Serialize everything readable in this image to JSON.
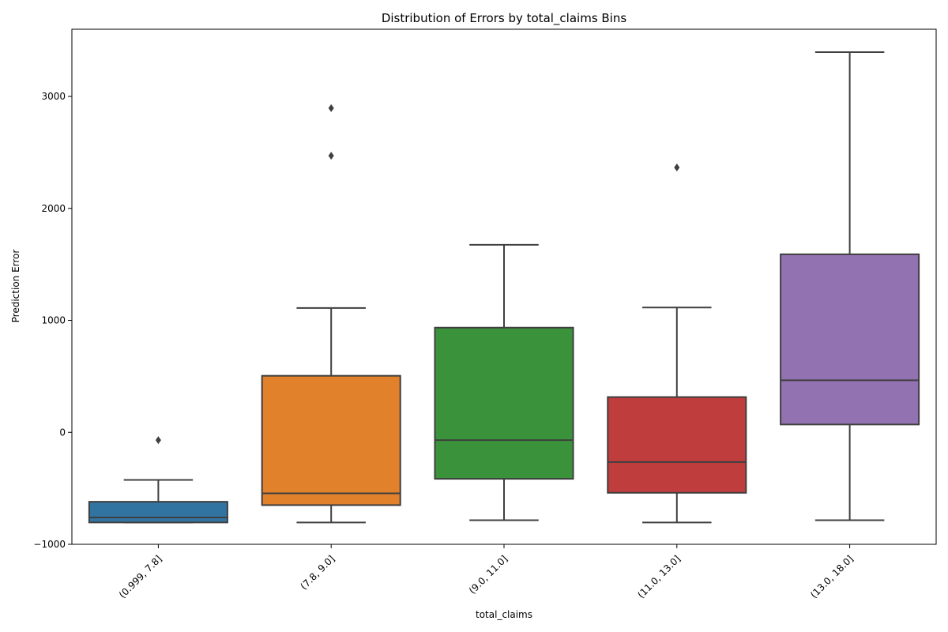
{
  "chart_data": {
    "type": "box",
    "title": "Distribution of Errors by total_claims Bins",
    "xlabel": "total_claims",
    "ylabel": "Prediction Error",
    "ylim": [
      -1000,
      3600
    ],
    "yticks": [
      -1000,
      0,
      1000,
      2000,
      3000
    ],
    "ytick_labels": [
      "−1000",
      "0",
      "1000",
      "2000",
      "3000"
    ],
    "grid": false,
    "categories": [
      "(0.999, 7.8]",
      "(7.8, 9.0]",
      "(9.0, 11.0]",
      "(11.0, 13.0]",
      "(13.0, 18.0]"
    ],
    "boxes": [
      {
        "category": "(0.999, 7.8]",
        "whisker_low": -805,
        "q1": -805,
        "median": -760,
        "q3": -620,
        "whisker_high": -425,
        "fliers": [
          -70
        ],
        "color": "#3274a1"
      },
      {
        "category": "(7.8, 9.0]",
        "whisker_low": -805,
        "q1": -650,
        "median": -545,
        "q3": 505,
        "whisker_high": 1110,
        "fliers": [
          2470,
          2895
        ],
        "color": "#e1812c"
      },
      {
        "category": "(9.0, 11.0]",
        "whisker_low": -785,
        "q1": -415,
        "median": -70,
        "q3": 935,
        "whisker_high": 1675,
        "fliers": [],
        "color": "#3a923a"
      },
      {
        "category": "(11.0, 13.0]",
        "whisker_low": -805,
        "q1": -540,
        "median": -265,
        "q3": 315,
        "whisker_high": 1115,
        "fliers": [
          2365
        ],
        "color": "#c03d3e"
      },
      {
        "category": "(13.0, 18.0]",
        "whisker_low": -785,
        "q1": 70,
        "median": 465,
        "q3": 1590,
        "whisker_high": 3395,
        "fliers": [],
        "color": "#9372b2"
      }
    ]
  }
}
